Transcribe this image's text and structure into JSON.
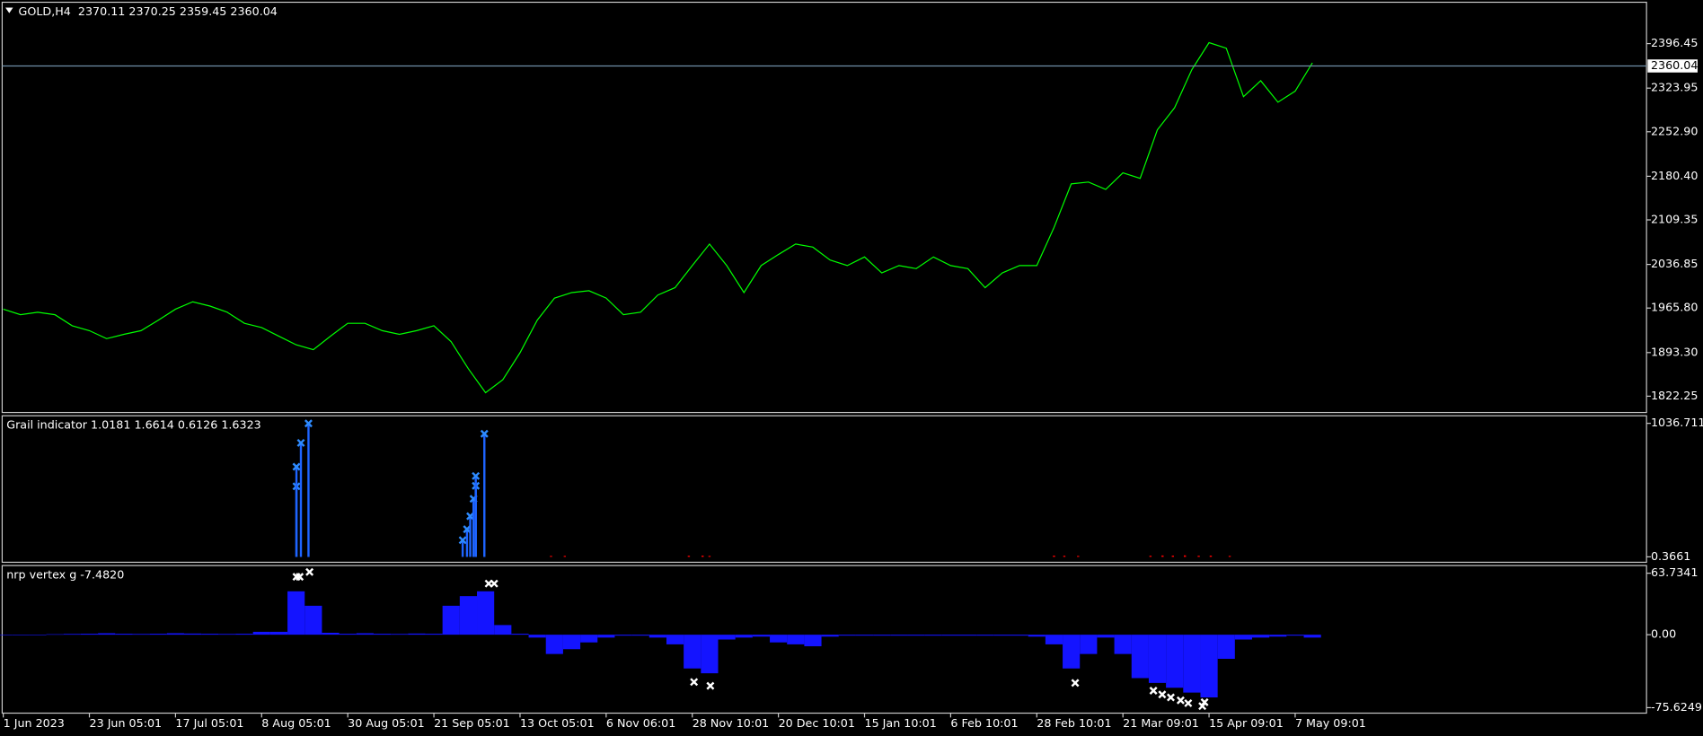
{
  "chart_data": [
    {
      "type": "line",
      "title": "GOLD,H4  2370.11 2370.25 2359.45 2360.04",
      "categories": [
        "1 Jun 2023",
        null,
        null,
        null,
        null,
        "23 Jun 05:01",
        null,
        null,
        null,
        null,
        "17 Jul 05:01",
        null,
        null,
        null,
        null,
        "8 Aug 05:01",
        null,
        null,
        null,
        null,
        "30 Aug 05:01",
        null,
        null,
        null,
        null,
        "21 Sep 05:01",
        null,
        null,
        null,
        null,
        "13 Oct 05:01",
        null,
        null,
        null,
        null,
        "6 Nov 06:01",
        null,
        null,
        null,
        null,
        "28 Nov 10:01",
        null,
        null,
        null,
        null,
        "20 Dec 10:01",
        null,
        null,
        null,
        null,
        "15 Jan 10:01",
        null,
        null,
        null,
        null,
        "6 Feb 10:01",
        null,
        null,
        null,
        null,
        "28 Feb 10:01",
        null,
        null,
        null,
        null,
        "21 Mar 09:01",
        null,
        null,
        null,
        null,
        "15 Apr 09:01",
        null,
        null,
        null,
        null,
        "7 May 09:01",
        null
      ],
      "values": [
        1964,
        1955,
        1959,
        1955,
        1937,
        1929,
        1916,
        1923,
        1929,
        1946,
        1964,
        1976,
        1969,
        1959,
        1941,
        1934,
        1920,
        1906,
        1898,
        1920,
        1941,
        1941,
        1929,
        1923,
        1929,
        1937,
        1911,
        1867,
        1828,
        1849,
        1893,
        1946,
        1982,
        1991,
        1994,
        1982,
        1955,
        1959,
        1987,
        1999,
        2035,
        2070,
        2035,
        1991,
        2035,
        2053,
        2070,
        2065,
        2044,
        2035,
        2049,
        2023,
        2035,
        2030,
        2049,
        2035,
        2030,
        1999,
        2023,
        2035,
        2035,
        2097,
        2168,
        2171,
        2159,
        2186,
        2177,
        2256,
        2292,
        2354,
        2398,
        2389,
        2310,
        2336,
        2301,
        2319,
        2365
      ],
      "color": "#00ff00",
      "current_price": 2360.04,
      "ylim": [
        1795.7,
        2463.8
      ],
      "yticks": [
        2396.45,
        2323.95,
        {
          "value": 2252.9,
          "label": "2252.90"
        },
        {
          "value": 2180.4,
          "label": "2180.40"
        },
        2109.35,
        2036.85,
        {
          "value": 1965.8,
          "label": "1965.80"
        },
        {
          "value": 1893.3,
          "label": "1893.30"
        },
        1822.25
      ]
    },
    {
      "type": "stem",
      "title": "Grail indicator 1.0181 1.6614 0.6126 1.6323",
      "series": [
        {
          "color": "#1e64ff",
          "marker": "x",
          "x": [
            17.02,
            17.02,
            17.28,
            17.72,
            26.67,
            26.92,
            27.11,
            27.3,
            27.43,
            27.43,
            27.93
          ],
          "values": [
            548,
            700,
            885,
            1036,
            130,
            215,
            316,
            451,
            552,
            628,
            956
          ]
        },
        {
          "color": "#ff0000",
          "x": [
            31.8,
            32.6,
            39.8,
            40.6,
            41.0,
            61.0,
            61.6,
            62.4,
            66.6,
            67.3,
            67.9,
            68.6,
            69.4,
            70.1,
            71.2
          ],
          "values": [
            8,
            8,
            9,
            10,
            8,
            10,
            9,
            8,
            9,
            11,
            10,
            12,
            9,
            10,
            8
          ]
        }
      ],
      "ylim": [
        -41.7,
        1095.6
      ],
      "yticks": [
        0.3661,
        1036.7111
      ]
    },
    {
      "type": "bar",
      "title": "nrp vertex g -7.4820",
      "values": [
        0,
        0,
        0,
        0.5,
        0.8,
        1,
        1.5,
        1,
        0.8,
        1,
        1.5,
        1.2,
        1,
        0.8,
        1,
        3,
        3,
        45,
        30,
        2,
        1,
        1.5,
        1,
        0.8,
        1.2,
        1,
        30,
        40,
        45,
        10,
        1,
        -3,
        -20,
        -15,
        -8,
        -3,
        -1,
        -1,
        -3,
        -10,
        -35,
        -40,
        -5,
        -3,
        -2,
        -8,
        -10,
        -12,
        -2,
        -1,
        -1,
        -1,
        -1,
        -1,
        -1,
        -1,
        -1,
        -1,
        -1,
        -1,
        -2,
        -10,
        -35,
        -20,
        -3,
        -20,
        -45,
        -50,
        -55,
        -60,
        -65,
        -25,
        -5,
        -3,
        -2,
        -1,
        -3
      ],
      "color": "#1414ff",
      "markers": {
        "color": "#ffffff",
        "x": [
          17.02,
          17.21,
          17.78,
          28.18,
          28.5,
          40.1,
          41.05,
          62.23,
          66.77,
          67.28,
          67.78,
          68.35,
          68.79,
          69.61,
          69.74
        ],
        "values": [
          60,
          60,
          65,
          53,
          53,
          -49,
          -53,
          -50,
          -58,
          -62,
          -65,
          -68,
          -71,
          -74,
          -70
        ]
      },
      "ylim": [
        -81.3,
        71.7
      ],
      "yticks": [
        63.7341,
        {
          "value": 0,
          "label": "0.00"
        },
        -75.6249
      ]
    }
  ]
}
